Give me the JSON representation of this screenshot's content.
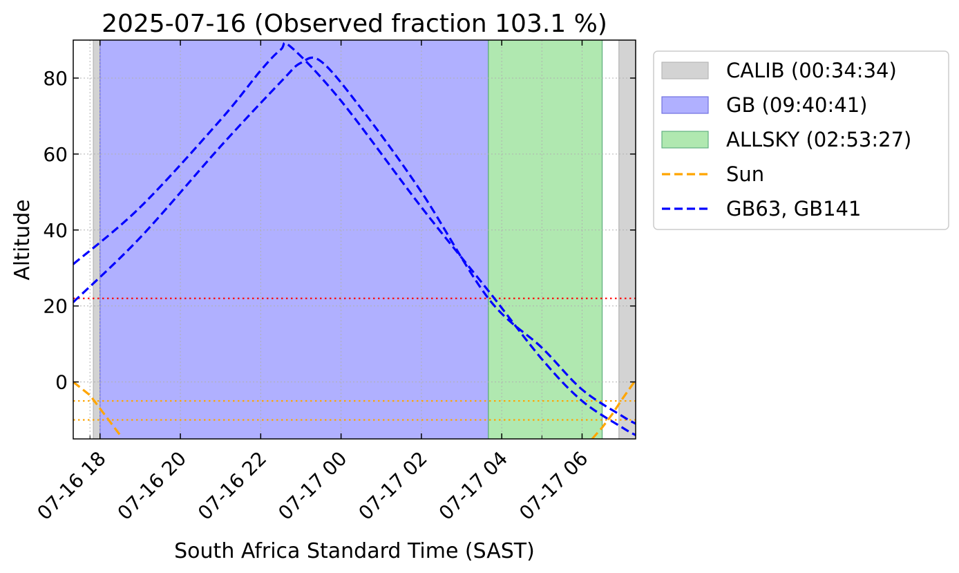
{
  "chart_data": {
    "type": "line",
    "title": "2025-07-16 (Observed fraction 103.1 %)",
    "xlabel": "South Africa Standard Time (SAST)",
    "ylabel": "Altitude",
    "x_unit": "datetime (SAST)",
    "xlim": [
      "2025-07-16 17:20",
      "2025-07-17 07:20"
    ],
    "ylim": [
      -15,
      90
    ],
    "x_ticks": [
      {
        "value": "2025-07-16 18:00",
        "label": "07-16 18"
      },
      {
        "value": "2025-07-16 20:00",
        "label": "07-16 20"
      },
      {
        "value": "2025-07-16 22:00",
        "label": "07-16 22"
      },
      {
        "value": "2025-07-17 00:00",
        "label": "07-17 00"
      },
      {
        "value": "2025-07-17 02:00",
        "label": "07-17 02"
      },
      {
        "value": "2025-07-17 04:00",
        "label": "07-17 04"
      },
      {
        "value": "2025-07-17 06:00",
        "label": "07-17 06"
      }
    ],
    "x_minor_gridlines": [
      "2025-07-16 17:45",
      "2025-07-17 05:00"
    ],
    "y_ticks": [
      0,
      20,
      40,
      60,
      80
    ],
    "grid": true,
    "legend_position": "outside-right-top",
    "spans": [
      {
        "name": "CALIB (00:34:34)",
        "color": "#d3d3d3",
        "ranges": [
          [
            "2025-07-16 17:50",
            "2025-07-16 18:00"
          ],
          [
            "2025-07-17 06:55",
            "2025-07-17 07:20"
          ]
        ]
      },
      {
        "name": "GB (09:40:41)",
        "color": "#b0b0ff",
        "ranges": [
          [
            "2025-07-16 18:00",
            "2025-07-17 03:40"
          ]
        ]
      },
      {
        "name": "ALLSKY (02:53:27)",
        "color": "#b0e8b0",
        "ranges": [
          [
            "2025-07-17 03:40",
            "2025-07-17 06:30"
          ]
        ]
      }
    ],
    "hlines": [
      {
        "y": 22,
        "color": "#ff0000"
      },
      {
        "y": -5,
        "color": "#ffa500"
      },
      {
        "y": -10,
        "color": "#ffa500"
      }
    ],
    "series": [
      {
        "name": "Sun",
        "color": "#ffa500",
        "x": [
          "2025-07-16 17:20",
          "2025-07-16 17:45",
          "2025-07-16 18:00",
          "2025-07-16 18:15",
          "2025-07-16 18:30",
          "2025-07-17 06:15",
          "2025-07-17 06:30",
          "2025-07-17 06:45",
          "2025-07-17 07:00",
          "2025-07-17 07:20"
        ],
        "y": [
          0,
          -3.5,
          -7,
          -10.5,
          -14,
          -15,
          -12,
          -8.5,
          -4.5,
          0.5
        ]
      },
      {
        "name": "GB63",
        "color": "#0000ff",
        "x": [
          "2025-07-16 17:20",
          "2025-07-16 19:00",
          "2025-07-16 21:00",
          "2025-07-16 22:00",
          "2025-07-16 22:30",
          "2025-07-16 22:45",
          "2025-07-17 00:00",
          "2025-07-17 02:00",
          "2025-07-17 03:40",
          "2025-07-17 05:00",
          "2025-07-17 06:00",
          "2025-07-17 07:00",
          "2025-07-17 07:20"
        ],
        "y": [
          31,
          46,
          69,
          82,
          87.5,
          88.2,
          74,
          46,
          24,
          6,
          -5,
          -12,
          -14
        ]
      },
      {
        "name": "GB141",
        "color": "#0000ff",
        "x": [
          "2025-07-16 17:20",
          "2025-07-16 19:00",
          "2025-07-16 21:00",
          "2025-07-16 22:30",
          "2025-07-16 23:00",
          "2025-07-16 23:30",
          "2025-07-17 00:30",
          "2025-07-17 02:00",
          "2025-07-17 03:40",
          "2025-07-17 05:00",
          "2025-07-17 06:00",
          "2025-07-17 07:00",
          "2025-07-17 07:20"
        ],
        "y": [
          21,
          38,
          62,
          79,
          84,
          84.4,
          72,
          50,
          22,
          9,
          -2,
          -9,
          -11
        ]
      }
    ],
    "legend": [
      {
        "label": "CALIB (00:34:34)",
        "kind": "patch",
        "color": "#d3d3d3"
      },
      {
        "label": "GB (09:40:41)",
        "kind": "patch",
        "color": "#b0b0ff"
      },
      {
        "label": "ALLSKY (02:53:27)",
        "kind": "patch",
        "color": "#b0e8b0"
      },
      {
        "label": "Sun",
        "kind": "dashed-line",
        "color": "#ffa500"
      },
      {
        "label": "GB63, GB141",
        "kind": "dashed-line",
        "color": "#0000ff"
      }
    ]
  }
}
